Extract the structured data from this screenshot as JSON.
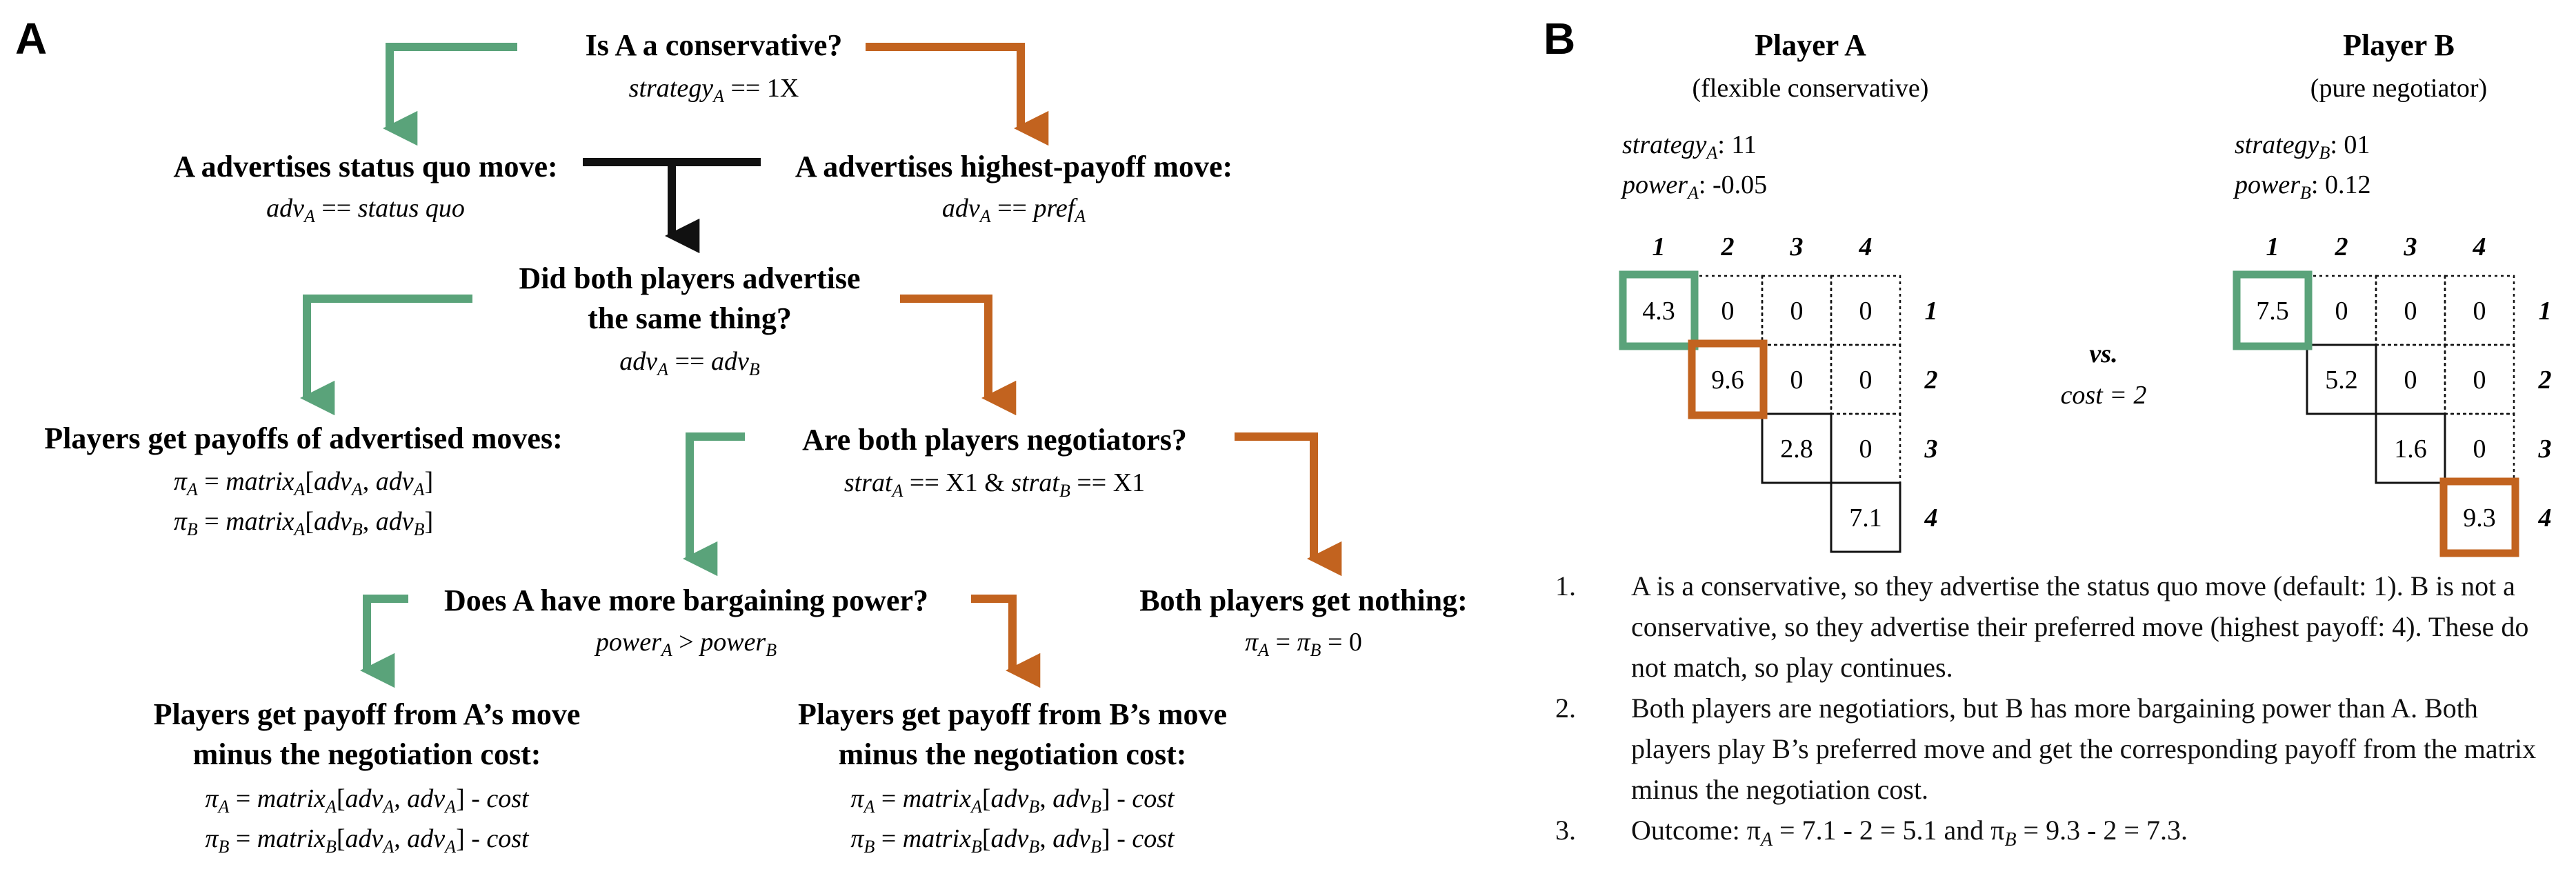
{
  "panel_a": {
    "letter": "A",
    "q1": {
      "title": "Is A a conservative?",
      "cond_var": "strategy",
      "cond_sub": "A",
      "cond_rest": " == 1X"
    },
    "adv_sq": {
      "title": "A advertises status quo move:",
      "l_var": "adv",
      "l_sub": "A",
      "l_op": " == ",
      "l_val": "status quo"
    },
    "adv_hp": {
      "title": "A advertises highest-payoff move:",
      "l_var": "adv",
      "l_sub": "A",
      "l_op": " == ",
      "l_val": "pref",
      "l_val_sub": "A"
    },
    "q2": {
      "title1": "Did both players advertise",
      "title2": "the same thing?",
      "c_a": "adv",
      "c_a_sub": "A",
      "c_op": " == ",
      "c_b": "adv",
      "c_b_sub": "B"
    },
    "payoffs_adv": {
      "title": "Players get payoffs of advertised moves:",
      "l1_pi": "π",
      "l1_pi_sub": "A",
      "l1_eq": " = ",
      "l1_mat": "matrix",
      "l1_mat_sub": "A",
      "l1_open": "[",
      "l1_a1": "adv",
      "l1_a1_sub": "A",
      "l1_comma": ", ",
      "l1_a2": "adv",
      "l1_a2_sub": "A",
      "l1_close": "]",
      "l2_pi": "π",
      "l2_pi_sub": "B",
      "l2_eq": " = ",
      "l2_mat": "matrix",
      "l2_mat_sub": "A",
      "l2_open": "[",
      "l2_a1": "adv",
      "l2_a1_sub": "B",
      "l2_comma": ", ",
      "l2_a2": "adv",
      "l2_a2_sub": "B",
      "l2_close": "]"
    },
    "q3": {
      "title": "Are both players negotiators?",
      "s1": "strat",
      "s1_sub": "A",
      "s1_rest": " == X1 & ",
      "s2": "strat",
      "s2_sub": "B",
      "s2_rest": " == X1"
    },
    "q4": {
      "title": "Does A have more bargaining power?",
      "p1": "power",
      "p1_sub": "A",
      "op": " > ",
      "p2": "power",
      "p2_sub": "B"
    },
    "nothing": {
      "title": "Both players get nothing:",
      "pi1": "π",
      "pi1_sub": "A",
      "eq1": " = ",
      "pi2": "π",
      "pi2_sub": "B",
      "eq2": " = 0"
    },
    "payoff_a": {
      "title1": "Players get payoff from A’s move",
      "title2": "minus the negotiation cost:",
      "l1_pi": "π",
      "l1_pi_sub": "A",
      "l1_eq": " = ",
      "l1_mat": "matrix",
      "l1_mat_sub": "A",
      "l1_open": "[",
      "l1_a1": "adv",
      "l1_a1_sub": "A",
      "l1_comma": ", ",
      "l1_a2": "adv",
      "l1_a2_sub": "A",
      "l1_close": "] - ",
      "l1_cost": "cost",
      "l2_pi": "π",
      "l2_pi_sub": "B",
      "l2_eq": " = ",
      "l2_mat": "matrix",
      "l2_mat_sub": "B",
      "l2_open": "[",
      "l2_a1": "adv",
      "l2_a1_sub": "A",
      "l2_comma": ", ",
      "l2_a2": "adv",
      "l2_a2_sub": "A",
      "l2_close": "] - ",
      "l2_cost": "cost"
    },
    "payoff_b": {
      "title1": "Players get payoff from B’s move",
      "title2": "minus the negotiation cost:",
      "l1_pi": "π",
      "l1_pi_sub": "A",
      "l1_eq": " = ",
      "l1_mat": "matrix",
      "l1_mat_sub": "A",
      "l1_open": "[",
      "l1_a1": "adv",
      "l1_a1_sub": "B",
      "l1_comma": ", ",
      "l1_a2": "adv",
      "l1_a2_sub": "B",
      "l1_close": "] - ",
      "l1_cost": "cost",
      "l2_pi": "π",
      "l2_pi_sub": "B",
      "l2_eq": " = ",
      "l2_mat": "matrix",
      "l2_mat_sub": "B",
      "l2_open": "[",
      "l2_a1": "adv",
      "l2_a1_sub": "B",
      "l2_comma": ", ",
      "l2_a2": "adv",
      "l2_a2_sub": "B",
      "l2_close": "] - ",
      "l2_cost": "cost"
    }
  },
  "panel_b": {
    "letter": "B",
    "player_a": {
      "name": "Player A",
      "type": "(flexible conservative)",
      "strat_label": "strategy",
      "strat_sub": "A",
      "strat_value": ": 11",
      "power_label": "power",
      "power_sub": "A",
      "power_value": ": -0.05"
    },
    "player_b": {
      "name": "Player B",
      "type": "(pure negotiator)",
      "strat_label": "strategy",
      "strat_sub": "B",
      "strat_value": ": 01",
      "power_label": "power",
      "power_sub": "B",
      "power_value": ": 0.12"
    },
    "vs": "vs.",
    "cost": "cost = 2",
    "col_labels": [
      "1",
      "2",
      "3",
      "4"
    ],
    "row_labels": [
      "1",
      "2",
      "3",
      "4"
    ],
    "matrix_a": {
      "diag": [
        "4.3",
        "9.6",
        "2.8",
        "7.1"
      ],
      "off": "0"
    },
    "matrix_b": {
      "diag": [
        "7.5",
        "5.2",
        "1.6",
        "9.3"
      ],
      "off": "0"
    },
    "steps": [
      {
        "num": "1.",
        "text": "A is a conservative, so they advertise the status quo move (default: 1). B is not a conservative, so they advertise their preferred move (highest payoff: 4). These do not match, so play continues."
      },
      {
        "num": "2.",
        "text": "Both players are negotiatiors, but B has more bargaining power than A. Both players play B’s preferred move and get the corresponding payoff from the matrix minus the negotiation cost."
      },
      {
        "num": "3.",
        "text": "Outcome: π",
        "sub1": "A",
        "mid": " = 7.1 - 2 = 5.1 and π",
        "sub2": "B",
        "tail": " = 9.3 - 2 = 7.3."
      }
    ]
  },
  "colors": {
    "green": "#5aa37a",
    "orange": "#c2631f",
    "black": "#111111"
  }
}
